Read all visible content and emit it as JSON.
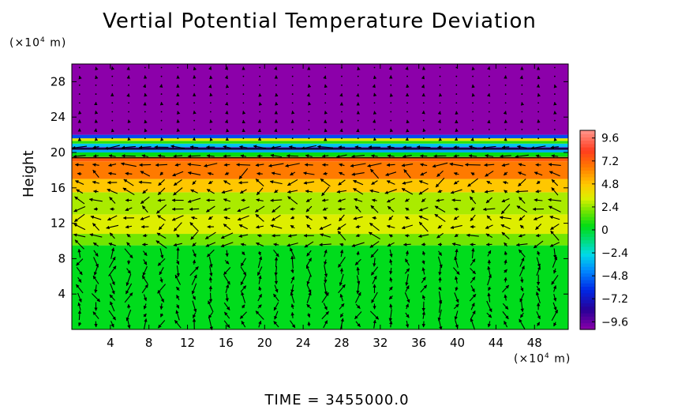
{
  "chart_data": {
    "type": "heatmap",
    "title": "Vertial Potential Temperature Deviation",
    "ylabel": "Height",
    "y_unit": {
      "prefix": "(×10",
      "exp": "4",
      "suffix": " m)"
    },
    "x_unit": {
      "prefix": "(×10",
      "exp": "4",
      "suffix": " m)"
    },
    "xlim": [
      0,
      51.5
    ],
    "ylim": [
      0,
      30
    ],
    "x_ticks": [
      4,
      8,
      12,
      16,
      20,
      24,
      28,
      32,
      36,
      40,
      44,
      48
    ],
    "y_ticks": [
      4,
      8,
      12,
      16,
      20,
      24,
      28
    ],
    "colorbar": {
      "range": [
        -10.4,
        10.4
      ],
      "tick_values": [
        9.6,
        7.2,
        4.8,
        2.4,
        0,
        -2.4,
        -4.8,
        -7.2,
        -9.6
      ],
      "tick_labels": [
        "9.6",
        "7.2",
        "4.8",
        "2.4",
        "0",
        "−2.4",
        "−4.8",
        "−7.2",
        "−9.6"
      ]
    },
    "field_bands": [
      {
        "y0": 0,
        "y1": 9.5,
        "value": 0.3
      },
      {
        "y0": 9.5,
        "y1": 10.8,
        "value": 2.0
      },
      {
        "y0": 10.8,
        "y1": 13.0,
        "value": 3.4
      },
      {
        "y0": 13.0,
        "y1": 15.5,
        "value": 2.7
      },
      {
        "y0": 15.5,
        "y1": 17.0,
        "value": 4.8
      },
      {
        "y0": 17.0,
        "y1": 19.0,
        "value": 6.6
      },
      {
        "y0": 19.0,
        "y1": 19.5,
        "value": 7.5
      },
      {
        "y0": 19.5,
        "y1": 20.0,
        "value": 0.5
      },
      {
        "y0": 20.0,
        "y1": 20.3,
        "value": -3.5
      },
      {
        "y0": 20.3,
        "y1": 20.6,
        "value": -8.5
      },
      {
        "y0": 20.6,
        "y1": 21.0,
        "value": -3.0
      },
      {
        "y0": 21.0,
        "y1": 21.3,
        "value": 1.0
      },
      {
        "y0": 21.3,
        "y1": 21.6,
        "value": 3.5
      },
      {
        "y0": 21.6,
        "y1": 22.0,
        "value": -5.5
      },
      {
        "y0": 22.0,
        "y1": 30,
        "value": -10.4
      }
    ],
    "contour_lines": [
      19.4,
      20.4
    ],
    "vector_field": true,
    "grid": false
  },
  "footer": {
    "label": "TIME",
    "value": "3455000.0"
  }
}
